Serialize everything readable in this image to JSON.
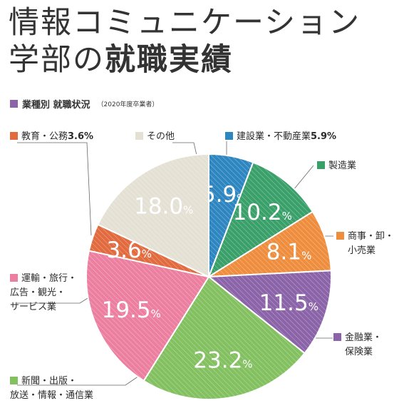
{
  "title": {
    "line1": "情報コミュニケーション",
    "line2_light": "学部の",
    "line2_bold": "就職実績"
  },
  "subtitle": {
    "text": "業種別 就職状況",
    "note": "（2020年度卒業者）"
  },
  "colors": {
    "accent": "#8b63a8"
  },
  "chart_data": {
    "type": "pie",
    "title": "業種別 就職状況",
    "slices": [
      {
        "name": "建設業・不動産業",
        "value": 5.9,
        "label": "5.9%",
        "color": "#2e86c1"
      },
      {
        "name": "製造業",
        "value": 10.2,
        "label": "10.2%",
        "color": "#3aa06a"
      },
      {
        "name": "商事・卸・小売業",
        "value": 8.1,
        "label": "8.1%",
        "color": "#ee8d3d"
      },
      {
        "name": "金融業・保険業",
        "value": 11.5,
        "label": "11.5%",
        "color": "#8b63a8"
      },
      {
        "name": "新聞・出版・放送・情報・通信業",
        "value": 23.2,
        "label": "23.2%",
        "color": "#82c060"
      },
      {
        "name": "運輸・旅行・広告・観光・サービス業",
        "value": 19.5,
        "label": "19.5%",
        "color": "#ec7ea0"
      },
      {
        "name": "教育・公務",
        "value": 3.6,
        "label": "3.6%",
        "color": "#e26a3f"
      },
      {
        "name": "その他",
        "value": 18.0,
        "label": "18.0%",
        "color": "#e4e1d4"
      }
    ]
  },
  "legend": {
    "construction": {
      "name": "建設業・不動産業",
      "pct": "5.9%"
    },
    "manufacturing": {
      "name": "製造業"
    },
    "trade_l1": "商事・卸・",
    "trade_l2": "小売業",
    "finance_l1": "金融業・",
    "finance_l2": "保険業",
    "media_l1": "新聞・出版・",
    "media_l2": "放送・情報・通信業",
    "service_l1": "運輸・旅行・",
    "service_l2": "広告・観光・",
    "service_l3": "サービス業",
    "education": {
      "name": "教育・公務",
      "pct": "3.6%"
    },
    "other": {
      "name": "その他"
    }
  }
}
